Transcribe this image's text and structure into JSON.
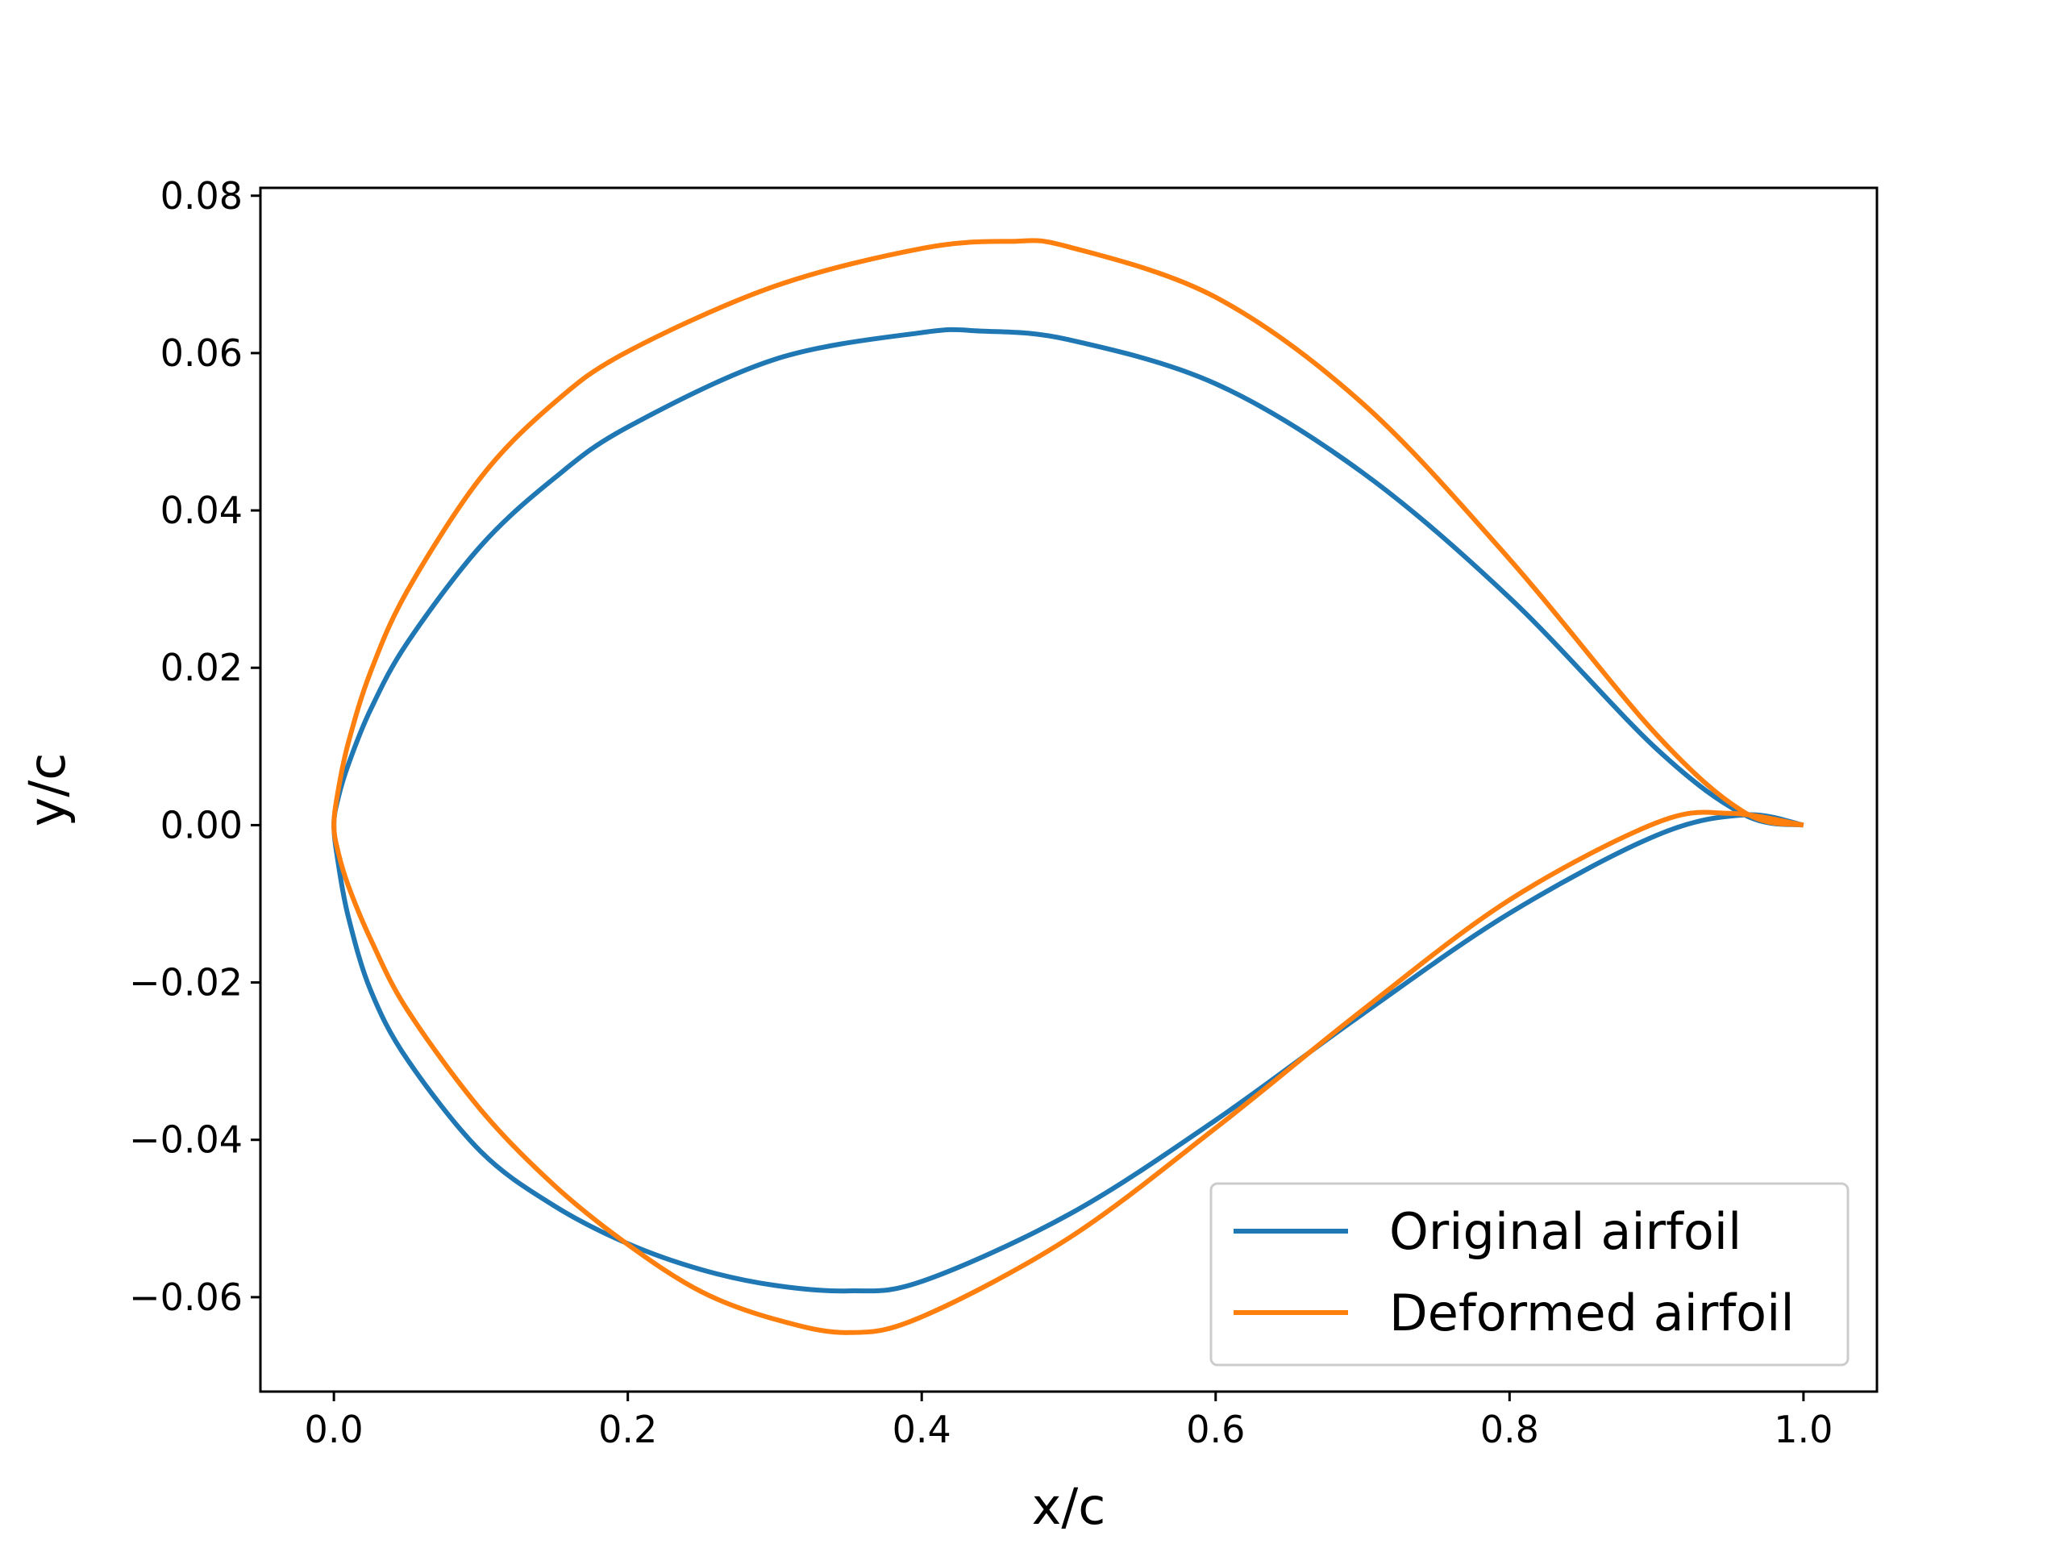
{
  "chart_data": {
    "type": "line",
    "xlabel": "x/c",
    "ylabel": "y/c",
    "xlim": [
      -0.05,
      1.05
    ],
    "ylim": [
      -0.072,
      0.081
    ],
    "xticks": [
      0.0,
      0.2,
      0.4,
      0.6,
      0.8,
      1.0
    ],
    "xtick_labels": [
      "0.0",
      "0.2",
      "0.4",
      "0.6",
      "0.8",
      "1.0"
    ],
    "yticks": [
      0.08,
      0.06,
      0.04,
      0.02,
      0.0,
      -0.02,
      -0.04,
      -0.06
    ],
    "ytick_labels": [
      "0.08",
      "0.06",
      "0.04",
      "0.02",
      "0.00",
      "−0.02",
      "−0.04",
      "−0.06"
    ],
    "grid": false,
    "legend": {
      "position": "lower-right",
      "entries": [
        "Original airfoil",
        "Deformed airfoil"
      ]
    },
    "series": [
      {
        "name": "Original airfoil",
        "color": "#1f77b4",
        "points": [
          [
            1.0,
            0.0
          ],
          [
            0.96,
            0.0013
          ],
          [
            0.9,
            0.0097
          ],
          [
            0.8,
            0.0289
          ],
          [
            0.7,
            0.0448
          ],
          [
            0.6,
            0.0561
          ],
          [
            0.5,
            0.0617
          ],
          [
            0.44,
            0.0628
          ],
          [
            0.4,
            0.0626
          ],
          [
            0.3,
            0.0592
          ],
          [
            0.2,
            0.0506
          ],
          [
            0.15,
            0.0441
          ],
          [
            0.1,
            0.0355
          ],
          [
            0.05,
            0.0232
          ],
          [
            0.025,
            0.0147
          ],
          [
            0.01,
            0.0078
          ],
          [
            0.003,
            0.0035
          ],
          [
            0.0,
            0.0
          ],
          [
            0.003,
            -0.0049
          ],
          [
            0.01,
            -0.0118
          ],
          [
            0.025,
            -0.021
          ],
          [
            0.05,
            -0.0298
          ],
          [
            0.1,
            -0.0415
          ],
          [
            0.15,
            -0.0484
          ],
          [
            0.2,
            -0.0532
          ],
          [
            0.25,
            -0.0565
          ],
          [
            0.3,
            -0.0585
          ],
          [
            0.35,
            -0.0592
          ],
          [
            0.4,
            -0.058
          ],
          [
            0.5,
            -0.0495
          ],
          [
            0.6,
            -0.0375
          ],
          [
            0.7,
            -0.024
          ],
          [
            0.8,
            -0.0112
          ],
          [
            0.9,
            -0.0013
          ],
          [
            0.96,
            0.0013
          ],
          [
            1.0,
            0.0
          ]
        ]
      },
      {
        "name": "Deformed airfoil",
        "color": "#ff7f0e",
        "points": [
          [
            1.0,
            0.0
          ],
          [
            0.96,
            0.0016
          ],
          [
            0.9,
            0.0115
          ],
          [
            0.8,
            0.0338
          ],
          [
            0.7,
            0.0536
          ],
          [
            0.6,
            0.0671
          ],
          [
            0.5,
            0.0735
          ],
          [
            0.46,
            0.0742
          ],
          [
            0.4,
            0.0733
          ],
          [
            0.3,
            0.0685
          ],
          [
            0.2,
            0.0602
          ],
          [
            0.15,
            0.0537
          ],
          [
            0.1,
            0.0442
          ],
          [
            0.05,
            0.0298
          ],
          [
            0.025,
            0.0195
          ],
          [
            0.01,
            0.0106
          ],
          [
            0.003,
            0.0045
          ],
          [
            0.0,
            0.0
          ],
          [
            0.003,
            -0.0035
          ],
          [
            0.01,
            -0.0078
          ],
          [
            0.025,
            -0.0145
          ],
          [
            0.05,
            -0.0235
          ],
          [
            0.1,
            -0.0362
          ],
          [
            0.15,
            -0.0458
          ],
          [
            0.2,
            -0.0533
          ],
          [
            0.25,
            -0.0593
          ],
          [
            0.3,
            -0.0628
          ],
          [
            0.35,
            -0.0645
          ],
          [
            0.4,
            -0.0625
          ],
          [
            0.5,
            -0.0525
          ],
          [
            0.6,
            -0.0385
          ],
          [
            0.7,
            -0.0235
          ],
          [
            0.8,
            -0.0095
          ],
          [
            0.9,
            0.0003
          ],
          [
            0.95,
            0.0015
          ],
          [
            1.0,
            0.0
          ]
        ]
      }
    ]
  }
}
